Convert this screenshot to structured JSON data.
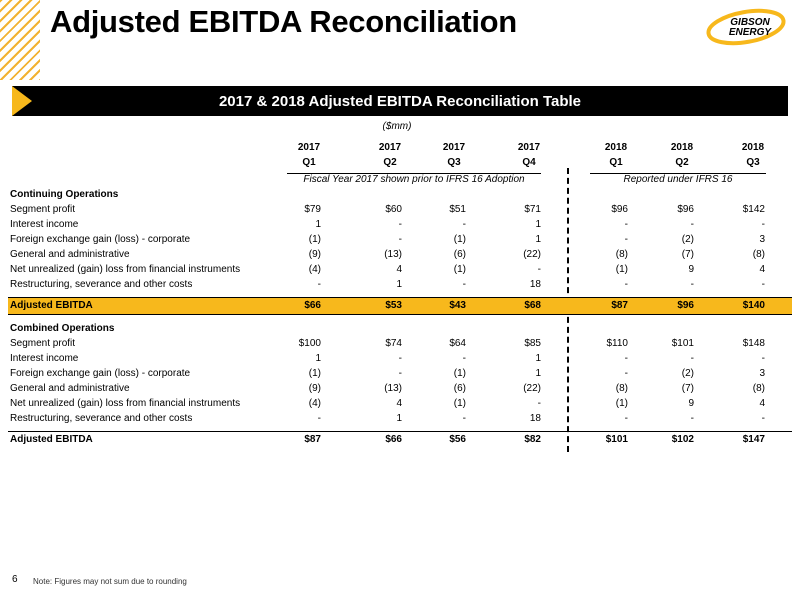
{
  "title": "Adjusted EBITDA Reconciliation",
  "logo": {
    "line1": "GIBSON",
    "line2": "ENERGY"
  },
  "table_title": "2017 & 2018 Adjusted EBITDA Reconciliation Table",
  "units": "($mm)",
  "columns": [
    {
      "year": "2017",
      "quarter": "Q1"
    },
    {
      "year": "2017",
      "quarter": "Q2"
    },
    {
      "year": "2017",
      "quarter": "Q3"
    },
    {
      "year": "2017",
      "quarter": "Q4"
    },
    {
      "year": "2018",
      "quarter": "Q1"
    },
    {
      "year": "2018",
      "quarter": "Q2"
    },
    {
      "year": "2018",
      "quarter": "Q3"
    }
  ],
  "basis_left": "Fiscal Year 2017 shown prior to IFRS 16 Adoption",
  "basis_right": "Reported under IFRS 16",
  "sections": [
    {
      "title": "Continuing Operations",
      "rows": [
        {
          "label": "Segment profit",
          "values": [
            "$79",
            "$60",
            "$51",
            "$71",
            "$96",
            "$96",
            "$142"
          ]
        },
        {
          "label": "Interest income",
          "values": [
            "1",
            "-",
            "-",
            "1",
            "-",
            "-",
            "-"
          ]
        },
        {
          "label": "Foreign exchange gain (loss) - corporate",
          "values": [
            "(1)",
            "-",
            "(1)",
            "1",
            "-",
            "(2)",
            "3"
          ]
        },
        {
          "label": "General and administrative",
          "values": [
            "(9)",
            "(13)",
            "(6)",
            "(22)",
            "(8)",
            "(7)",
            "(8)"
          ]
        },
        {
          "label": "Net unrealized (gain) loss from financial instruments",
          "values": [
            "(4)",
            "4",
            "(1)",
            "-",
            "(1)",
            "9",
            "4"
          ]
        },
        {
          "label": "Restructuring, severance and other costs",
          "values": [
            "-",
            "1",
            "-",
            "18",
            "-",
            "-",
            "-"
          ]
        }
      ],
      "total": {
        "label": "Adjusted EBITDA",
        "values": [
          "$66",
          "$53",
          "$43",
          "$68",
          "$87",
          "$96",
          "$140"
        ]
      }
    },
    {
      "title": "Combined Operations",
      "rows": [
        {
          "label": "Segment profit",
          "values": [
            "$100",
            "$74",
            "$64",
            "$85",
            "$110",
            "$101",
            "$148"
          ]
        },
        {
          "label": "Interest income",
          "values": [
            "1",
            "-",
            "-",
            "1",
            "-",
            "-",
            "-"
          ]
        },
        {
          "label": "Foreign exchange gain (loss) - corporate",
          "values": [
            "(1)",
            "-",
            "(1)",
            "1",
            "-",
            "(2)",
            "3"
          ]
        },
        {
          "label": "General and administrative",
          "values": [
            "(9)",
            "(13)",
            "(6)",
            "(22)",
            "(8)",
            "(7)",
            "(8)"
          ]
        },
        {
          "label": "Net unrealized (gain) loss from financial instruments",
          "values": [
            "(4)",
            "4",
            "(1)",
            "-",
            "(1)",
            "9",
            "4"
          ]
        },
        {
          "label": "Restructuring, severance and other costs",
          "values": [
            "-",
            "1",
            "-",
            "18",
            "-",
            "-",
            "-"
          ]
        }
      ],
      "total": {
        "label": "Adjusted EBITDA",
        "values": [
          "$87",
          "$66",
          "$56",
          "$82",
          "$101",
          "$102",
          "$147"
        ]
      }
    }
  ],
  "page_number": "6",
  "footnote": "Note: Figures may not sum due to rounding",
  "colors": {
    "accent": "#f7b81c",
    "stripe": "#f2b233",
    "bar": "#000000"
  }
}
